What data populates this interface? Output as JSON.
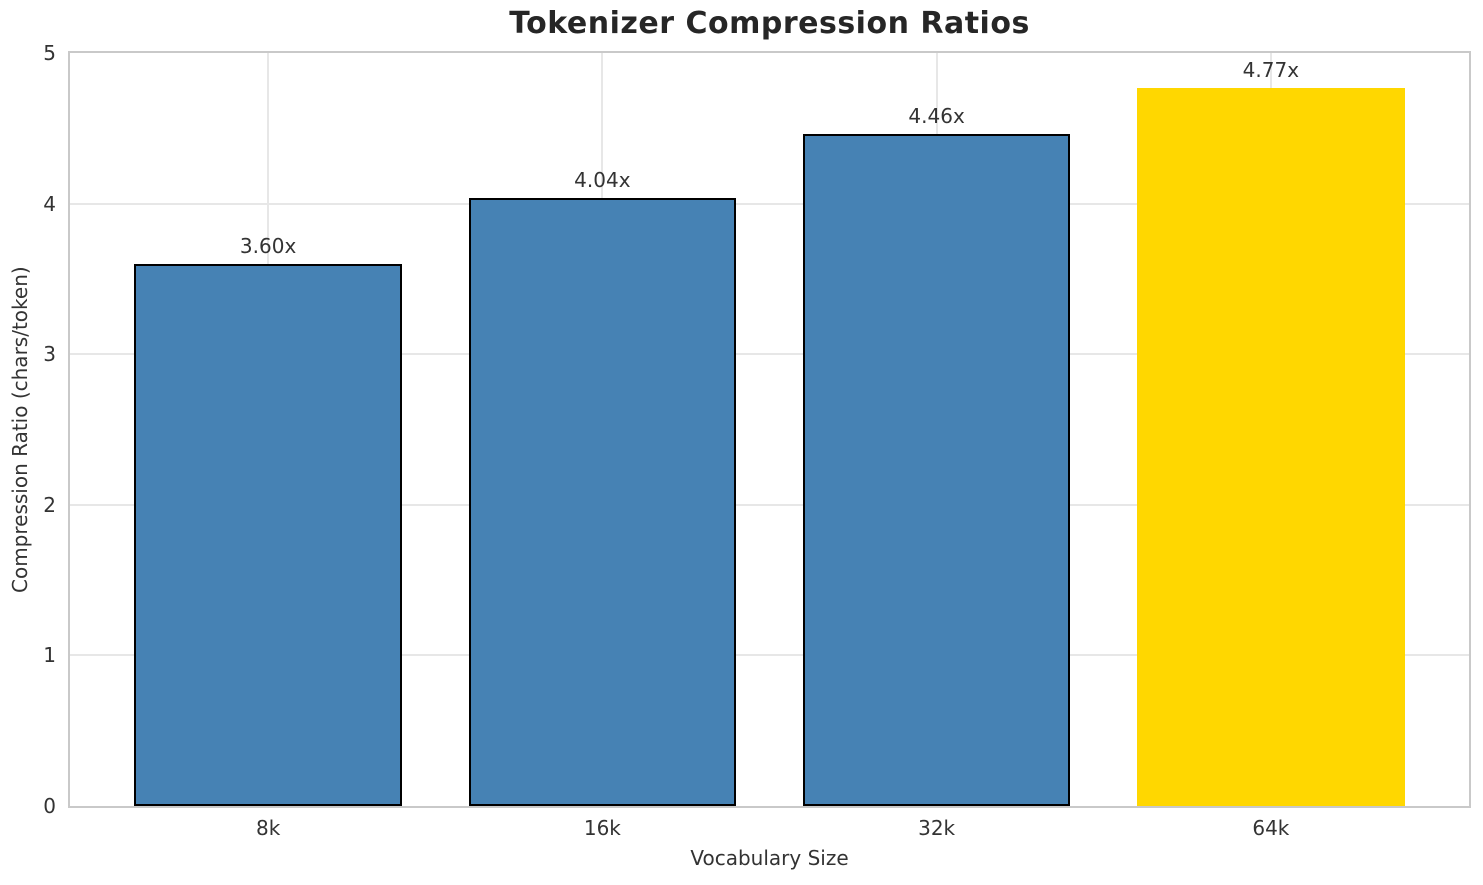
{
  "chart_data": {
    "type": "bar",
    "title": "Tokenizer Compression Ratios",
    "xlabel": "Vocabulary Size",
    "ylabel": "Compression Ratio (chars/token)",
    "categories": [
      "8k",
      "16k",
      "32k",
      "64k"
    ],
    "values": [
      3.6,
      4.04,
      4.46,
      4.77
    ],
    "bar_labels": [
      "3.60x",
      "4.04x",
      "4.46x",
      "4.77x"
    ],
    "bar_colors": [
      "#4682B4",
      "#4682B4",
      "#4682B4",
      "#FFD700"
    ],
    "bar_edge_colors": [
      "#000000",
      "#000000",
      "#000000",
      "none"
    ],
    "ylim": [
      0,
      5
    ],
    "yticks": [
      "0",
      "1",
      "2",
      "3",
      "4",
      "5"
    ],
    "grid": "both",
    "legend": "none",
    "colors": {
      "default_bar": "#4682B4",
      "highlight_bar": "#FFD700",
      "bar_edge": "#000000",
      "grid": "#e7e7e7",
      "spine": "#c9c9c9",
      "title_text": "#262626",
      "axis_text": "#333333"
    }
  }
}
